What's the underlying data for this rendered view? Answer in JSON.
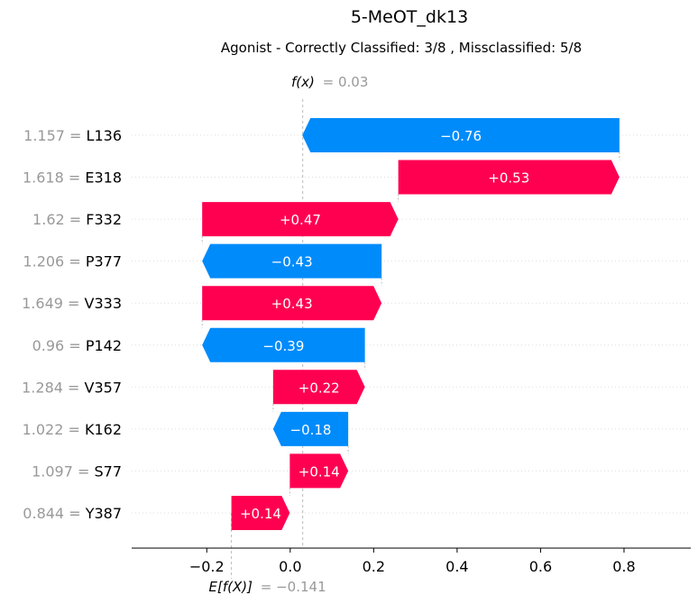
{
  "chart_data": {
    "type": "waterfall",
    "title": "5-MeOT_dk13",
    "subtitle": "Agonist - Correctly Classified: 3/8 , Missclassified: 5/8",
    "fx_label": "f(x)",
    "fx_value": "= 0.03",
    "fx": 0.03,
    "efx_label": "E[f(X)]",
    "efx_value": "= −0.141",
    "base_value": -0.141,
    "features": [
      {
        "value": "1.157",
        "name": "L136",
        "contribution": -0.76,
        "label": "−0.76"
      },
      {
        "value": "1.618",
        "name": "E318",
        "contribution": 0.53,
        "label": "+0.53"
      },
      {
        "value": "1.62",
        "name": "F332",
        "contribution": 0.47,
        "label": "+0.47"
      },
      {
        "value": "1.206",
        "name": "P377",
        "contribution": -0.43,
        "label": "−0.43"
      },
      {
        "value": "1.649",
        "name": "V333",
        "contribution": 0.43,
        "label": "+0.43"
      },
      {
        "value": "0.96",
        "name": "P142",
        "contribution": -0.39,
        "label": "−0.39"
      },
      {
        "value": "1.284",
        "name": "V357",
        "contribution": 0.22,
        "label": "+0.22"
      },
      {
        "value": "1.022",
        "name": "K162",
        "contribution": -0.18,
        "label": "−0.18"
      },
      {
        "value": "1.097",
        "name": "S77",
        "contribution": 0.14,
        "label": "+0.14"
      },
      {
        "value": "0.844",
        "name": "Y387",
        "contribution": 0.14,
        "label": "+0.14"
      }
    ],
    "x_ticks": [
      -0.2,
      0.0,
      0.2,
      0.4,
      0.6,
      0.8
    ],
    "x_tick_labels": [
      "−0.2",
      "0.0",
      "0.2",
      "0.4",
      "0.6",
      "0.8"
    ],
    "xlim": [
      -0.38,
      0.96
    ],
    "colors": {
      "positive": "#ff0051",
      "negative": "#008bfb",
      "value_text": "#999999"
    }
  }
}
